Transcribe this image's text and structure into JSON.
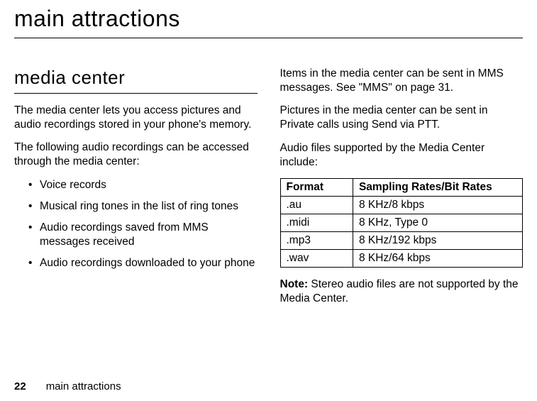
{
  "header": {
    "title": "main attractions"
  },
  "leftCol": {
    "sectionHeading": "media center",
    "para1": "The media center lets you access pictures and audio recordings stored in your phone's memory.",
    "para2": "The following audio recordings can be accessed through the media center:",
    "bullets": {
      "b0": "Voice records",
      "b1": "Musical ring tones in the list of ring tones",
      "b2": "Audio recordings saved from MMS messages received",
      "b3": "Audio recordings downloaded to your phone"
    }
  },
  "rightCol": {
    "para1": "Items in the media center can be sent in MMS messages. See \"MMS\" on page 31.",
    "para2": "Pictures in the media center can be sent in Private calls using Send via PTT.",
    "para3": "Audio files supported by the Media Center include:",
    "table": {
      "headers": {
        "h0": "Format",
        "h1": "Sampling Rates/Bit Rates"
      },
      "rows": {
        "r0": {
          "c0": ".au",
          "c1": "8 KHz/8 kbps"
        },
        "r1": {
          "c0": ".midi",
          "c1": "8 KHz, Type 0"
        },
        "r2": {
          "c0": ".mp3",
          "c1": "8 KHz/192 kbps"
        },
        "r3": {
          "c0": ".wav",
          "c1": "8 KHz/64 kbps"
        }
      }
    },
    "noteLabel": "Note:",
    "noteText": " Stereo audio files are not supported by the Media Center."
  },
  "footer": {
    "pageNum": "22",
    "text": "main attractions"
  }
}
